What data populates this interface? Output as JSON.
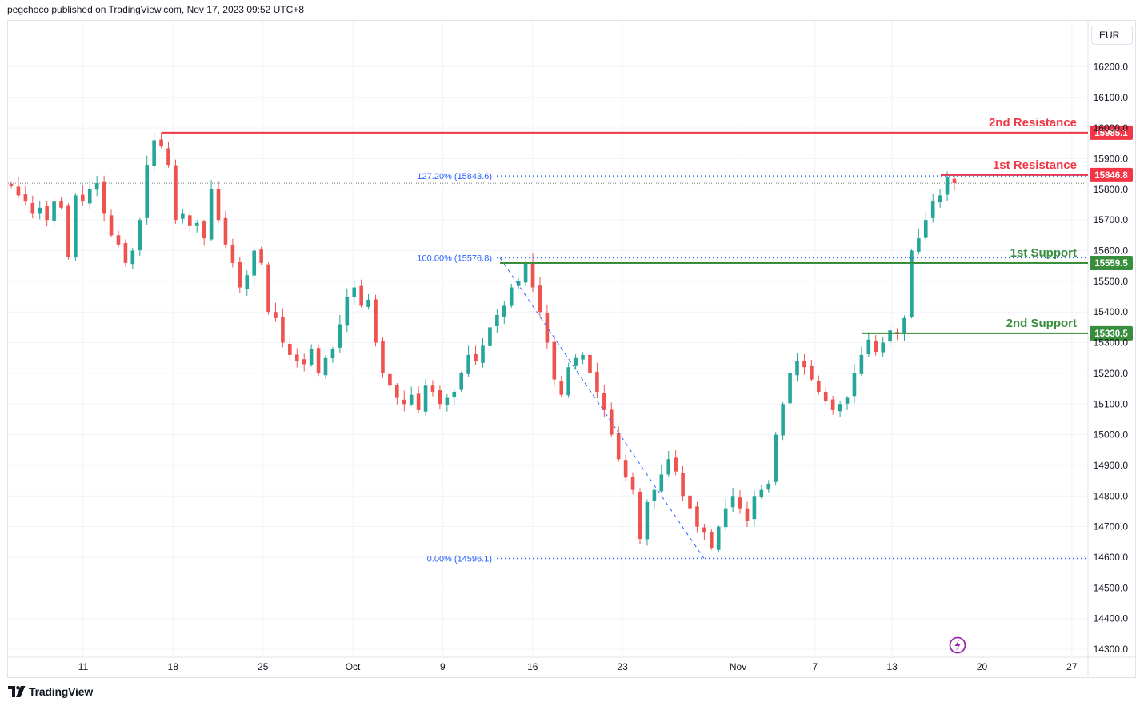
{
  "header": {
    "text": "pegchoco published on TradingView.com, Nov 17, 2023 09:52 UTC+8"
  },
  "currency": "EUR",
  "footer": {
    "brand": "TradingView"
  },
  "colors": {
    "up": "#26a69a",
    "down": "#ef5350",
    "resistance": "#f23645",
    "support": "#388e3c",
    "fib": "#2962ff",
    "grid": "#f0f3fa",
    "text": "#131722"
  },
  "chart_data": {
    "type": "candlestick",
    "y_ticks": [
      14300,
      14400,
      14500,
      14600,
      14700,
      14800,
      14900,
      15000,
      15100,
      15200,
      15300,
      15400,
      15500,
      15600,
      15700,
      15800,
      15900,
      16000,
      16100,
      16200
    ],
    "y_tick_labels": [
      "14300.0",
      "14400.0",
      "14500.0",
      "14600.0",
      "14700.0",
      "14800.0",
      "14900.0",
      "15000.0",
      "15100.0",
      "15200.0",
      "15300.0",
      "15400.0",
      "15500.0",
      "15600.0",
      "15700.0",
      "15800.0",
      "15900.0",
      "16000.0",
      "16100.0",
      "16200.0"
    ],
    "x_ticks": [
      {
        "label": "11",
        "date": "2023-09-11"
      },
      {
        "label": "18",
        "date": "2023-09-18"
      },
      {
        "label": "25",
        "date": "2023-09-25"
      },
      {
        "label": "Oct",
        "date": "2023-10-02"
      },
      {
        "label": "9",
        "date": "2023-10-09"
      },
      {
        "label": "16",
        "date": "2023-10-16"
      },
      {
        "label": "23",
        "date": "2023-10-23"
      },
      {
        "label": "Nov",
        "date": "2023-11-01"
      },
      {
        "label": "7",
        "date": "2023-11-07"
      },
      {
        "label": "13",
        "date": "2023-11-13"
      },
      {
        "label": "20",
        "date": "2023-11-20"
      },
      {
        "label": "27",
        "date": "2023-11-27"
      }
    ],
    "closes": [
      15810,
      15780,
      15760,
      15720,
      15740,
      15700,
      15760,
      15740,
      15580,
      15780,
      15760,
      15800,
      15820,
      15720,
      15650,
      15620,
      15560,
      15600,
      15700,
      15880,
      15960,
      15940,
      15880,
      15700,
      15720,
      15680,
      15690,
      15640,
      15800,
      15700,
      15620,
      15560,
      15480,
      15520,
      15600,
      15560,
      15400,
      15380,
      15300,
      15260,
      15240,
      15230,
      15280,
      15200,
      15250,
      15280,
      15360,
      15450,
      15480,
      15420,
      15440,
      15300,
      15200,
      15160,
      15120,
      15100,
      15130,
      15080,
      15160,
      15140,
      15100,
      15120,
      15140,
      15200,
      15260,
      15240,
      15290,
      15350,
      15390,
      15420,
      15480,
      15500,
      15560,
      15480,
      15400,
      15300,
      15180,
      15130,
      15220,
      15250,
      15260,
      15200,
      15140,
      15080,
      15000,
      14920,
      14860,
      14820,
      14660,
      14780,
      14820,
      14870,
      14920,
      14880,
      14800,
      14760,
      14700,
      14680,
      14630,
      14700,
      14760,
      14800,
      14760,
      14720,
      14800,
      14820,
      14840,
      15000,
      15100,
      15200,
      15240,
      15220,
      15180,
      15140,
      15110,
      15080,
      15100,
      15120,
      15200,
      15260,
      15310,
      15270,
      15300,
      15340,
      15330,
      15380,
      15600,
      15640,
      15700,
      15760,
      15780,
      15840,
      15820
    ],
    "levels": [
      {
        "name": "2nd Resistance",
        "value": 15985.1,
        "label": "15985.1",
        "kind": "resistance"
      },
      {
        "name": "1st Resistance",
        "value": 15846.8,
        "label": "15846.8",
        "kind": "resistance"
      },
      {
        "name": "1st Support",
        "value": 15559.5,
        "label": "15559.5",
        "kind": "support"
      },
      {
        "name": "2nd Support",
        "value": 15330.5,
        "label": "15330.5",
        "kind": "support"
      }
    ],
    "fibonacci": [
      {
        "label": "127.20% (15843.6)",
        "value": 15843.6
      },
      {
        "label": "100.00% (15576.8)",
        "value": 15576.8
      },
      {
        "label": "0.00% (14596.1)",
        "value": 14596.1
      }
    ],
    "current_price": 15820
  }
}
